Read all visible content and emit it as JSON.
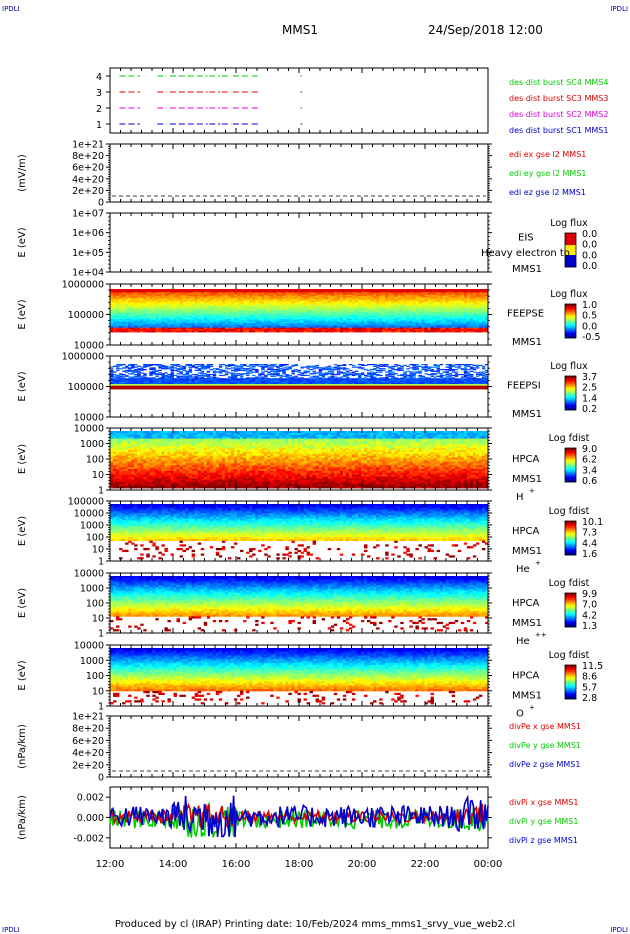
{
  "corners": {
    "tl": "IPDLI",
    "tr": "IPDLI",
    "bl": "IPDLI",
    "br": "IPDLI"
  },
  "header": {
    "spacecraft": "MMS1",
    "datetime": "24/Sep/2018 12:00"
  },
  "footer": {
    "text": "Produced by cl (IRAP)   Printing date: 10/Feb/2024   mms_mms1_srvy_vue_web2.cl"
  },
  "colors": {
    "series_x": "#dd0000",
    "series_y": "#00cc00",
    "series_z": "#0000cc",
    "magenta": "#dd00dd"
  },
  "chart_data": [
    {
      "type": "line",
      "panel": "burst",
      "y_ticks": [
        "4",
        "3",
        "2",
        "1"
      ],
      "series": [
        {
          "name": "des dist burst SC1 MMS1",
          "color": "#0000cc",
          "level": 1
        },
        {
          "name": "des dist burst SC2 MMS2",
          "color": "#dd00dd",
          "level": 2
        },
        {
          "name": "des dist burst SC3 MMS3",
          "color": "#dd0000",
          "level": 3
        },
        {
          "name": "des dist burst SC4 MMS4",
          "color": "#00cc00",
          "level": 4
        }
      ],
      "segments_hours": [
        [
          12.3,
          12.95
        ],
        [
          13.5,
          13.8
        ],
        [
          13.9,
          15.1
        ],
        [
          15.15,
          15.5
        ],
        [
          15.55,
          15.85
        ],
        [
          15.9,
          16.45
        ],
        [
          16.5,
          16.7
        ],
        [
          18.05,
          18.1
        ]
      ]
    },
    {
      "type": "line",
      "panel": "edi",
      "ylabel": "(mV/m)",
      "y_ticks": [
        "1e+21",
        "8e+20",
        "6e+20",
        "4e+20",
        "2e+20",
        "0"
      ],
      "series": [
        {
          "name": "edi ex gse l2 MMS1",
          "color": "#dd0000"
        },
        {
          "name": "edi ey gse l2 MMS1",
          "color": "#00cc00"
        },
        {
          "name": "edi ez gse l2 MMS1",
          "color": "#0000cc"
        }
      ]
    },
    {
      "type": "heatmap",
      "panel": "eis",
      "ylabel": "E (eV)",
      "y_ticks": [
        "1e+07",
        "1e+06",
        "1e+05",
        "1e+04"
      ],
      "inst": [
        "EIS",
        "MMS1"
      ],
      "overlay": "Heavy electron to",
      "cbar_title": "Log flux",
      "cbar_ticks": [
        "0.0",
        "0.0",
        "0.0",
        "0.0"
      ],
      "empty": true
    },
    {
      "type": "heatmap",
      "panel": "feepse",
      "ylabel": "E (eV)",
      "y_ticks": [
        "1000000",
        "100000",
        "10000"
      ],
      "inst": [
        "FEEPSE",
        "MMS1"
      ],
      "cbar_title": "Log flux",
      "cbar_ticks": [
        "1.0",
        "0.5",
        "0.0",
        "-0.5"
      ]
    },
    {
      "type": "heatmap",
      "panel": "feepsi",
      "ylabel": "E (eV)",
      "y_ticks": [
        "1000000",
        "100000",
        "10000"
      ],
      "inst": [
        "FEEPSI",
        "MMS1"
      ],
      "cbar_title": "Log flux",
      "cbar_ticks": [
        "3.7",
        "2.5",
        "1.4",
        "0.2"
      ]
    },
    {
      "type": "heatmap",
      "panel": "hpca_h",
      "ylabel": "E (eV)",
      "y_ticks": [
        "10000",
        "1000",
        "100",
        "10",
        "1"
      ],
      "inst": [
        "HPCA",
        "MMS1"
      ],
      "species": "H",
      "charge": "+",
      "cbar_title": "Log fdist",
      "cbar_ticks": [
        "9.0",
        "6.2",
        "3.4",
        "0.6"
      ]
    },
    {
      "type": "heatmap",
      "panel": "hpca_he",
      "ylabel": "E (eV)",
      "y_ticks": [
        "100000",
        "10000",
        "1000",
        "100",
        "10",
        "1"
      ],
      "inst": [
        "HPCA",
        "MMS1"
      ],
      "species": "He",
      "charge": "+",
      "cbar_title": "Log fdist",
      "cbar_ticks": [
        "10.1",
        "7.3",
        "4.4",
        "1.6"
      ]
    },
    {
      "type": "heatmap",
      "panel": "hpca_hepp",
      "ylabel": "E (eV)",
      "y_ticks": [
        "10000",
        "1000",
        "100",
        "10",
        "1"
      ],
      "inst": [
        "HPCA",
        "MMS1"
      ],
      "species": "He",
      "charge": "++",
      "cbar_title": "Log fdist",
      "cbar_ticks": [
        "9.9",
        "7.0",
        "4.2",
        "1.3"
      ]
    },
    {
      "type": "heatmap",
      "panel": "hpca_o",
      "ylabel": "E (eV)",
      "y_ticks": [
        "10000",
        "1000",
        "100",
        "10",
        "1"
      ],
      "inst": [
        "HPCA",
        "MMS1"
      ],
      "species": "O",
      "charge": "+",
      "cbar_title": "Log fdist",
      "cbar_ticks": [
        "11.5",
        "8.6",
        "5.7",
        "2.8"
      ]
    },
    {
      "type": "line",
      "panel": "divpe",
      "ylabel": "(nPa/km)",
      "y_ticks": [
        "1e+21",
        "8e+20",
        "6e+20",
        "4e+20",
        "2e+20",
        "0"
      ],
      "series": [
        {
          "name": "divPe x gse MMS1",
          "color": "#dd0000"
        },
        {
          "name": "divPe y gse MMS1",
          "color": "#00cc00"
        },
        {
          "name": "divPe z gse MMS1",
          "color": "#0000cc"
        }
      ]
    },
    {
      "type": "line",
      "panel": "divpi",
      "ylabel": "(nPa/km)",
      "y_ticks": [
        "0.002",
        "0.000",
        "-0.002"
      ],
      "ylim": [
        -0.003,
        0.003
      ],
      "series": [
        {
          "name": "divPi x gse MMS1",
          "color": "#dd0000"
        },
        {
          "name": "divPi y gse MMS1",
          "color": "#00cc00"
        },
        {
          "name": "divPi z gse MMS1",
          "color": "#0000cc"
        }
      ]
    }
  ],
  "x_axis": {
    "ticks": [
      "12:00",
      "14:00",
      "16:00",
      "18:00",
      "20:00",
      "22:00",
      "00:00"
    ],
    "range_hours": [
      12,
      24
    ]
  }
}
